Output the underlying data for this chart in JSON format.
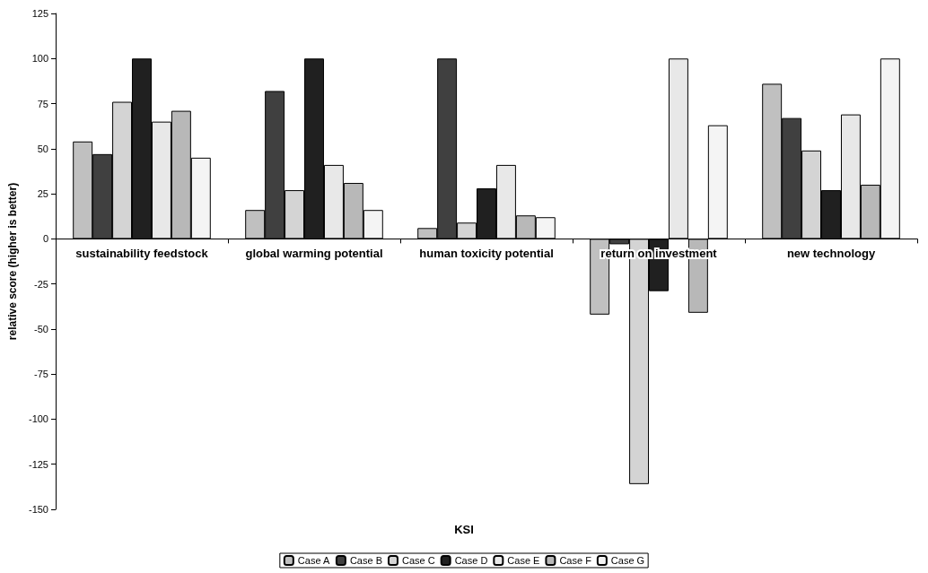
{
  "chart_data": {
    "type": "bar",
    "xlabel": "KSI",
    "ylabel": "relative score (higher is better)",
    "categories": [
      "sustainability feedstock",
      "global warming potential",
      "human toxicity potential",
      "return on investment",
      "new technology"
    ],
    "series": [
      {
        "name": "Case A",
        "color": "#c0c0c0",
        "values": [
          54,
          16,
          6,
          -42,
          86
        ]
      },
      {
        "name": "Case B",
        "color": "#404040",
        "values": [
          47,
          82,
          100,
          -3,
          67
        ]
      },
      {
        "name": "Case C",
        "color": "#d4d4d4",
        "values": [
          76,
          27,
          9,
          -136,
          49
        ]
      },
      {
        "name": "Case D",
        "color": "#202020",
        "values": [
          100,
          100,
          28,
          -29,
          27
        ]
      },
      {
        "name": "Case E",
        "color": "#e8e8e8",
        "values": [
          65,
          41,
          41,
          100,
          69
        ]
      },
      {
        "name": "Case F",
        "color": "#b8b8b8",
        "values": [
          71,
          31,
          13,
          -41,
          30
        ]
      },
      {
        "name": "Case G",
        "color": "#f4f4f4",
        "values": [
          45,
          16,
          12,
          63,
          100
        ]
      }
    ],
    "ylim": [
      -150,
      125
    ],
    "yticks": [
      -150,
      -125,
      -100,
      -75,
      -50,
      -25,
      0,
      25,
      50,
      75,
      100,
      125
    ],
    "grid": false,
    "legend": "bottom"
  }
}
